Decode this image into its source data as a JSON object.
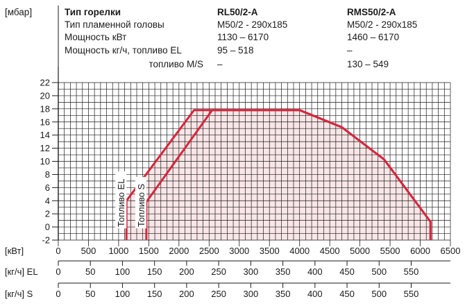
{
  "header": {
    "unit_label": "[мбар]",
    "rows": [
      {
        "label": "Тип горелки",
        "c1": "RL50/2-A",
        "c2": "RMS50/2-A",
        "bold": true
      },
      {
        "label": "Тип пламенной головы",
        "c1": "M50/2 - 290x185",
        "c2": "M50/2 - 290x185"
      },
      {
        "label": "Мощность кВт",
        "c1": "1130 – 6170",
        "c2": "1460 – 6170"
      },
      {
        "label": "Мощность кг/ч, топливо EL",
        "c1": "95 – 518",
        "c2": "–"
      },
      {
        "label": "топливо M/S",
        "c1": "–",
        "c2": "130 – 549",
        "indent": true
      }
    ]
  },
  "chart_data": {
    "type": "area",
    "ylabel": "[мбар]",
    "ylim": [
      -2,
      22
    ],
    "y_ticks": [
      22,
      20,
      18,
      16,
      14,
      12,
      10,
      8,
      6,
      4,
      2,
      0,
      -2
    ],
    "xlim": [
      0,
      6500
    ],
    "x_axes": [
      {
        "label": "[кВт]",
        "ticks": [
          0,
          500,
          1000,
          1500,
          2000,
          2500,
          3000,
          3500,
          4000,
          4500,
          5000,
          5500,
          6000,
          6500
        ]
      },
      {
        "label": "[кг/ч] EL",
        "ticks": [
          0,
          50,
          100,
          150,
          200,
          250,
          300,
          350,
          400,
          450,
          500,
          550
        ]
      },
      {
        "label": "[кг/ч] S",
        "ticks": [
          0,
          50,
          100,
          150,
          200,
          250,
          300,
          350,
          400,
          450,
          500,
          550
        ]
      }
    ],
    "grid": true,
    "series": [
      {
        "name": "Топливо EL",
        "x": [
          1130,
          1130,
          2250,
          4000,
          4700,
          5400,
          6170,
          6170
        ],
        "y": [
          -2,
          4,
          17.8,
          17.8,
          15.2,
          10.3,
          0.8,
          -2
        ]
      },
      {
        "name": "Топливо S",
        "x": [
          1460,
          1460,
          2550,
          4000,
          4700,
          5400,
          6170,
          6170
        ],
        "y": [
          -2,
          3.8,
          17.8,
          17.8,
          15.2,
          10.3,
          0.8,
          -2
        ]
      }
    ],
    "colors": {
      "line": "#d7263d",
      "fill": "#f9e6e6",
      "grid": "#1a1a1a"
    }
  }
}
